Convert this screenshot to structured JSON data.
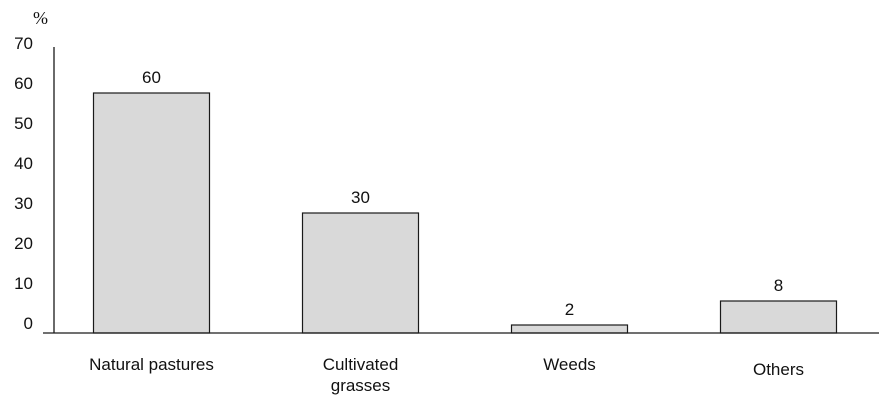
{
  "chart_data": {
    "type": "bar",
    "title": "",
    "xlabel": "",
    "ylabel": "%",
    "ylim": [
      0,
      70
    ],
    "yticks": [
      0,
      10,
      20,
      30,
      40,
      50,
      60,
      70
    ],
    "categories": [
      [
        "Natural pastures"
      ],
      [
        "Cultivated",
        "grasses"
      ],
      [
        "Weeds"
      ],
      [
        "Others"
      ]
    ],
    "values": [
      60,
      30,
      2,
      8
    ],
    "data_labels": [
      "60",
      "30",
      "2",
      "8"
    ],
    "grid": false,
    "legend": "none",
    "colors": {
      "bar_fill": "#d9d9d9",
      "bar_stroke": "#1a1a1a",
      "axis": "#1a1a1a"
    }
  }
}
